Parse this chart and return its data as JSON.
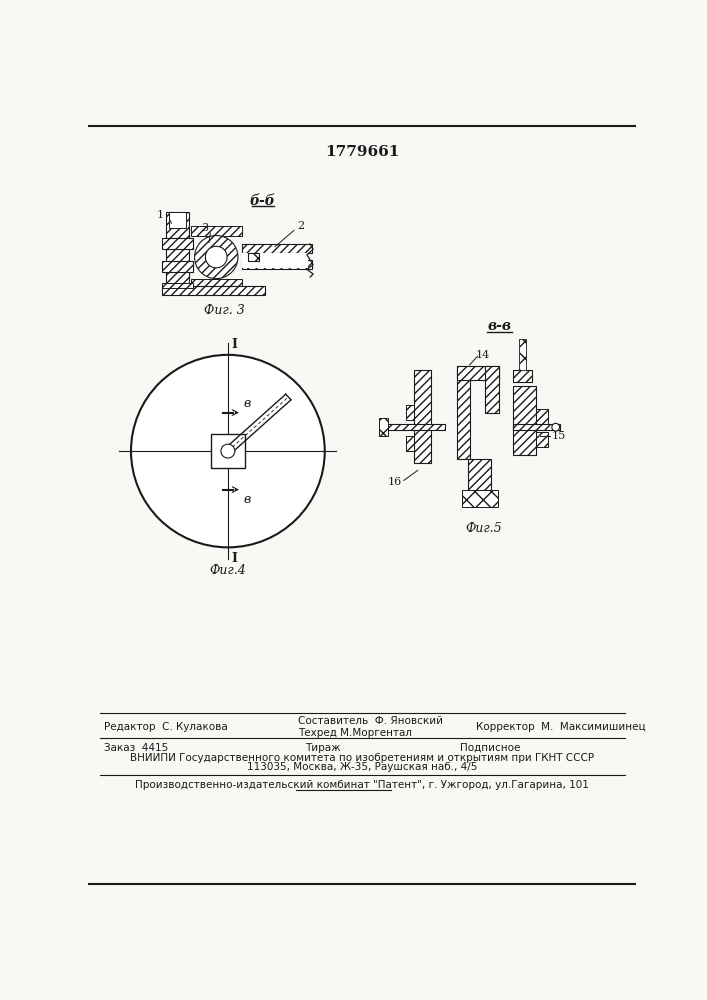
{
  "patent_number": "1779661",
  "background_color": "#f8f8f5",
  "line_color": "#1a1a1a",
  "footer": {
    "editor": "Редактор  С. Кулакова",
    "composer_label": "Составитель  Ф. Яновский",
    "techred_label": "Техред М.Моргентал",
    "corrector_label": "Корректор  М.  Максимишинец",
    "order": "Заказ  4415",
    "tirazh": "Тираж",
    "podpisnoe": "Подписное",
    "vniiipi": "ВНИИПИ Государственного комитета по изобретениям и открытиям при ГКНТ СССР",
    "address": "113035, Москва, Ж-35, Раушская наб., 4/5",
    "production": "Производственно-издательский комбинат \"Патент\", г. Ужгород, ул.Гагарина, 101"
  }
}
